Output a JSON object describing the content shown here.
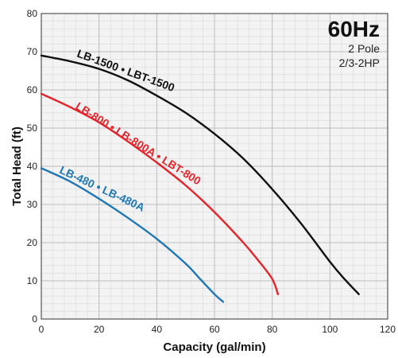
{
  "chart_data": {
    "type": "line",
    "title": "60Hz",
    "subtitle_lines": [
      "2 Pole",
      "2/3-2HP"
    ],
    "xlabel": "Capacity (gal/min)",
    "ylabel": "Total Head (ft)",
    "xlim": [
      0,
      120
    ],
    "ylim": [
      0,
      80
    ],
    "x_ticks": [
      0,
      20,
      40,
      60,
      80,
      100,
      120
    ],
    "y_ticks": [
      0,
      10,
      20,
      30,
      40,
      50,
      60,
      70,
      80
    ],
    "grid": true,
    "series": [
      {
        "name": "LB-1500 • LBT-1500",
        "color": "#111111",
        "x": [
          0,
          10,
          20,
          30,
          40,
          50,
          60,
          70,
          80,
          90,
          100,
          105,
          110
        ],
        "y": [
          69,
          67.5,
          65.5,
          62.5,
          58.5,
          54,
          48.5,
          42,
          34,
          25,
          15,
          10.5,
          6.5
        ]
      },
      {
        "name": "LB-800 • LB-800A • LBT-800",
        "color": "#e3242b",
        "x": [
          0,
          10,
          20,
          30,
          40,
          50,
          60,
          70,
          75,
          80,
          82
        ],
        "y": [
          59,
          55.5,
          51.5,
          46.5,
          41,
          35,
          28,
          20,
          15.5,
          10.5,
          6.5
        ]
      },
      {
        "name": "LB-480 • LB-480A",
        "color": "#1f77b4",
        "x": [
          0,
          10,
          20,
          30,
          40,
          50,
          55,
          60,
          63
        ],
        "y": [
          39.5,
          36,
          31.5,
          26.5,
          21,
          14.5,
          10.5,
          6.5,
          4.5
        ]
      }
    ]
  }
}
